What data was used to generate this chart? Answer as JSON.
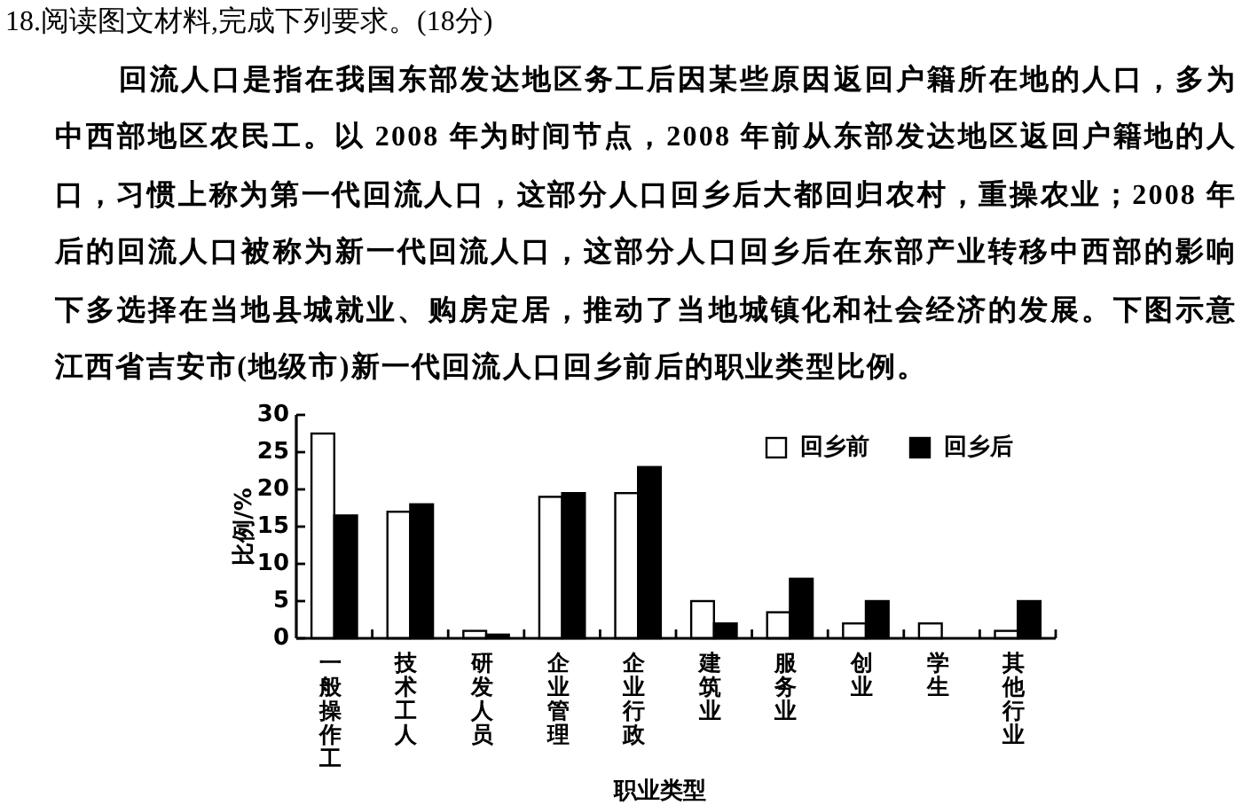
{
  "chart_data": {
    "type": "bar",
    "title": "18.阅读图文材料,完成下列要求。(18分)",
    "annotations": [
      "回流人口是指在我国东部发达地区务工后因某些原因返回户籍所在地的人口，多为中西部地区农民工。以 2008 年为时间节点，2008 年前从东部发达地区返回户籍地的人口，习惯上称为第一代回流人口，这部分人口回乡后大都回归农村，重操农业；2008 年后的回流人口被称为新一代回流人口，这部分人口回乡后在东部产业转移中西部的影响下多选择在当地县城就业、购房定居，推动了当地城镇化和社会经济的发展。下图示意江西省吉安市(地级市)新一代回流人口回乡前后的职业类型比例。"
    ],
    "categories": [
      "一般操作工",
      "技术工人",
      "研发人员",
      "企业管理",
      "企业行政",
      "建筑业",
      "服务业",
      "创业",
      "学生",
      "其他行业"
    ],
    "series": [
      {
        "name": "回乡前",
        "color": "#ffffff",
        "values": [
          27.5,
          17,
          1,
          19,
          19.5,
          5,
          3.5,
          2,
          2,
          1
        ]
      },
      {
        "name": "回乡后",
        "color": "#000000",
        "values": [
          16.5,
          18,
          0.5,
          19.5,
          23,
          2,
          8,
          5,
          null,
          5
        ]
      }
    ],
    "xlabel": "职业类型",
    "ylabel": "比例/%",
    "ylim": [
      0,
      30
    ],
    "yticks": [
      0,
      5,
      10,
      15,
      20,
      25,
      30
    ],
    "legend": "top right"
  }
}
